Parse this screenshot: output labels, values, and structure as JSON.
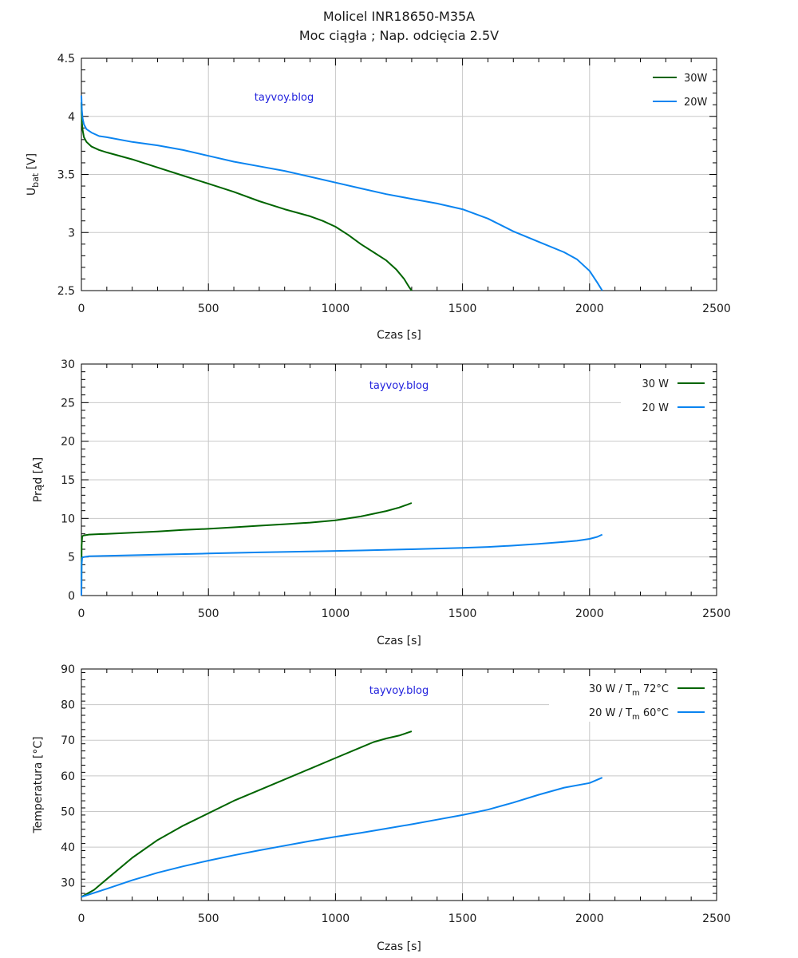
{
  "title_line1": "Molicel INR18650-M35A",
  "title_line2": "Moc ciągła ; Nap. odcięcia 2.5V",
  "colors": {
    "30W": "#006400",
    "20W": "#0a84f0",
    "grid": "#c8c8c8",
    "watermark": "#2222dd"
  },
  "chart_data": [
    {
      "type": "line",
      "title": "",
      "xlabel": "Czas [s]",
      "ylabel_main": "U",
      "ylabel_sub": "bat",
      "ylabel_suffix": " [V]",
      "xlim": [
        0,
        2500
      ],
      "ylim": [
        2.5,
        4.5
      ],
      "xticks": [
        0,
        500,
        1000,
        1500,
        2000,
        2500
      ],
      "xtick_labels": [
        "0",
        "500",
        "1000",
        "1500",
        "2000",
        "2500"
      ],
      "yticks": [
        2.5,
        3,
        3.5,
        4,
        4.5
      ],
      "ytick_labels": [
        "2.5",
        "3",
        "3.5",
        "4",
        "4.5"
      ],
      "grid": true,
      "legend_position": "top-right",
      "legend_style": "line-first",
      "watermark": "tayvoy.blog",
      "series": [
        {
          "name": "30W",
          "color_key": "30W",
          "x": [
            0,
            2,
            5,
            10,
            20,
            40,
            70,
            100,
            200,
            300,
            400,
            500,
            600,
            700,
            800,
            900,
            950,
            1000,
            1050,
            1100,
            1150,
            1200,
            1240,
            1270,
            1290,
            1300
          ],
          "y": [
            4.12,
            3.95,
            3.88,
            3.82,
            3.78,
            3.74,
            3.71,
            3.69,
            3.63,
            3.56,
            3.49,
            3.42,
            3.35,
            3.27,
            3.2,
            3.14,
            3.1,
            3.05,
            2.98,
            2.9,
            2.83,
            2.76,
            2.68,
            2.6,
            2.53,
            2.5
          ]
        },
        {
          "name": "20W",
          "color_key": "20W",
          "x": [
            0,
            2,
            5,
            10,
            20,
            40,
            70,
            100,
            200,
            300,
            400,
            500,
            600,
            700,
            800,
            900,
            1000,
            1100,
            1200,
            1300,
            1400,
            1500,
            1600,
            1700,
            1800,
            1900,
            1950,
            2000,
            2030,
            2050
          ],
          "y": [
            4.18,
            4.05,
            3.98,
            3.93,
            3.89,
            3.86,
            3.83,
            3.82,
            3.78,
            3.75,
            3.71,
            3.66,
            3.61,
            3.57,
            3.53,
            3.48,
            3.43,
            3.38,
            3.33,
            3.29,
            3.25,
            3.2,
            3.12,
            3.01,
            2.92,
            2.83,
            2.77,
            2.67,
            2.57,
            2.5
          ]
        }
      ]
    },
    {
      "type": "line",
      "title": "",
      "xlabel": "Czas [s]",
      "ylabel_main": "Prąd [A]",
      "ylabel_sub": "",
      "ylabel_suffix": "",
      "xlim": [
        0,
        2500
      ],
      "ylim": [
        0,
        30
      ],
      "xticks": [
        0,
        500,
        1000,
        1500,
        2000,
        2500
      ],
      "xtick_labels": [
        "0",
        "500",
        "1000",
        "1500",
        "2000",
        "2500"
      ],
      "yticks": [
        0,
        5,
        10,
        15,
        20,
        25,
        30
      ],
      "ytick_labels": [
        "0",
        "5",
        "10",
        "15",
        "20",
        "25",
        "30"
      ],
      "grid": true,
      "legend_position": "top-right",
      "legend_style": "label-first",
      "watermark": "tayvoy.blog",
      "series": [
        {
          "name": "30 W",
          "color_key": "30W",
          "x": [
            0,
            1,
            3,
            10,
            30,
            100,
            200,
            300,
            400,
            500,
            600,
            700,
            800,
            900,
            1000,
            1100,
            1150,
            1200,
            1250,
            1280,
            1300
          ],
          "y": [
            0,
            6.5,
            7.7,
            7.8,
            7.9,
            8.0,
            8.15,
            8.3,
            8.5,
            8.65,
            8.85,
            9.05,
            9.25,
            9.45,
            9.75,
            10.25,
            10.6,
            10.95,
            11.4,
            11.75,
            12.0
          ]
        },
        {
          "name": "20 W",
          "color_key": "20W",
          "x": [
            0,
            1,
            3,
            10,
            30,
            100,
            300,
            500,
            700,
            900,
            1100,
            1300,
            1500,
            1600,
            1700,
            1800,
            1900,
            1950,
            2000,
            2030,
            2050
          ],
          "y": [
            0,
            4.0,
            4.9,
            5.0,
            5.1,
            5.15,
            5.3,
            5.45,
            5.6,
            5.72,
            5.85,
            6.0,
            6.18,
            6.3,
            6.48,
            6.7,
            6.95,
            7.1,
            7.35,
            7.6,
            7.9
          ]
        }
      ]
    },
    {
      "type": "line",
      "title": "",
      "xlabel": "Czas [s]",
      "ylabel_main": "Temperatura [°C]",
      "ylabel_sub": "",
      "ylabel_suffix": "",
      "xlim": [
        0,
        2500
      ],
      "ylim": [
        25,
        90
      ],
      "xticks": [
        0,
        500,
        1000,
        1500,
        2000,
        2500
      ],
      "xtick_labels": [
        "0",
        "500",
        "1000",
        "1500",
        "2000",
        "2500"
      ],
      "yticks": [
        30,
        40,
        50,
        60,
        70,
        80,
        90
      ],
      "ytick_labels": [
        "30",
        "40",
        "50",
        "60",
        "70",
        "80",
        "90"
      ],
      "grid": true,
      "legend_position": "top-right",
      "legend_style": "label-first",
      "watermark": "tayvoy.blog",
      "series": [
        {
          "name": "30 W  / T",
          "name_sub": "m",
          "name_suffix": " 72°C",
          "color_key": "30W",
          "x": [
            0,
            50,
            100,
            200,
            300,
            400,
            500,
            600,
            700,
            800,
            900,
            1000,
            1100,
            1150,
            1200,
            1250,
            1300
          ],
          "y": [
            26,
            28,
            31,
            37,
            42,
            46,
            49.5,
            53,
            56,
            59,
            62,
            65,
            68,
            69.5,
            70.5,
            71.3,
            72.5
          ]
        },
        {
          "name": "20 W  / T",
          "name_sub": "m",
          "name_suffix": " 60°C",
          "color_key": "20W",
          "x": [
            0,
            100,
            200,
            300,
            400,
            500,
            600,
            700,
            800,
            900,
            1000,
            1100,
            1200,
            1300,
            1400,
            1500,
            1600,
            1700,
            1800,
            1900,
            2000,
            2050
          ],
          "y": [
            26,
            28.3,
            30.7,
            32.8,
            34.6,
            36.2,
            37.7,
            39.1,
            40.4,
            41.7,
            42.9,
            44.0,
            45.2,
            46.4,
            47.7,
            49.0,
            50.5,
            52.5,
            54.7,
            56.7,
            58.0,
            59.5
          ]
        }
      ]
    }
  ]
}
